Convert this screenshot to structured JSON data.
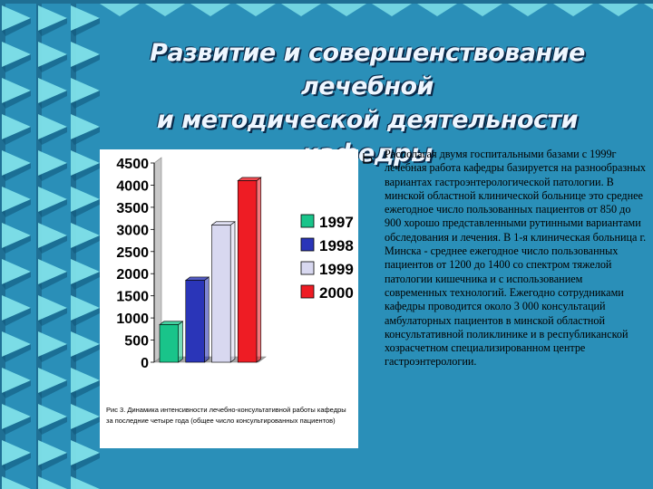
{
  "slide": {
    "title_line1": "Развитие и совершенствование лечебной",
    "title_line2": "и методической деятельности кафедры",
    "caption": "Рис 3.  Динамика интенсивности лечебно-консультативной работы кафедры за последние четыре года  (общее число консультированных пациентов)",
    "bullet_icon": "bullet-b-icon",
    "body": "Располагая двумя госпитальными базами с 1999г лечебная работа кафедры базируется на разнообразных вариантах гастроэнтерологической патологии. В минской областной клинической больнице это среднее ежегодное число пользованных пациентов от 850 до 900 хорошо представленными рутинными вариантами обследования и лечения. В 1-я клиническая больница г. Минска - среднее ежегодное число пользованных пациентов от 1200 до 1400 со  спектром тяжелой патологии кишечника и  с использованием современных технологий. Ежегодно сотрудниками кафедры проводится около 3 000 консультаций амбулаторных пациентов в минской областной консультативной поликлинике и в республиканской хозрасчетном специализированном центре гастроэнтерологии."
  },
  "colors": {
    "background": "#2a8fb8",
    "stripe_dark": "#1f6f94",
    "chevron": "#7fe0e8",
    "chart_bg": "#ffffff"
  },
  "chart_data": {
    "type": "bar",
    "categories": [
      "1997",
      "1998",
      "1999",
      "2000"
    ],
    "series": [
      {
        "name": "1997",
        "value": 850,
        "color": "#19c48a"
      },
      {
        "name": "1998",
        "value": 1850,
        "color": "#2a35b8"
      },
      {
        "name": "1999",
        "value": 3100,
        "color": "#d8d8f0"
      },
      {
        "name": "2000",
        "value": 4100,
        "color": "#ee1c24"
      }
    ],
    "ylim": [
      0,
      4500
    ],
    "yticks": [
      "0",
      "500",
      "1000",
      "1500",
      "2000",
      "2500",
      "3000",
      "3500",
      "4000",
      "4500"
    ],
    "legend_position": "right",
    "grid": false,
    "title": "",
    "xlabel": "",
    "ylabel": ""
  }
}
